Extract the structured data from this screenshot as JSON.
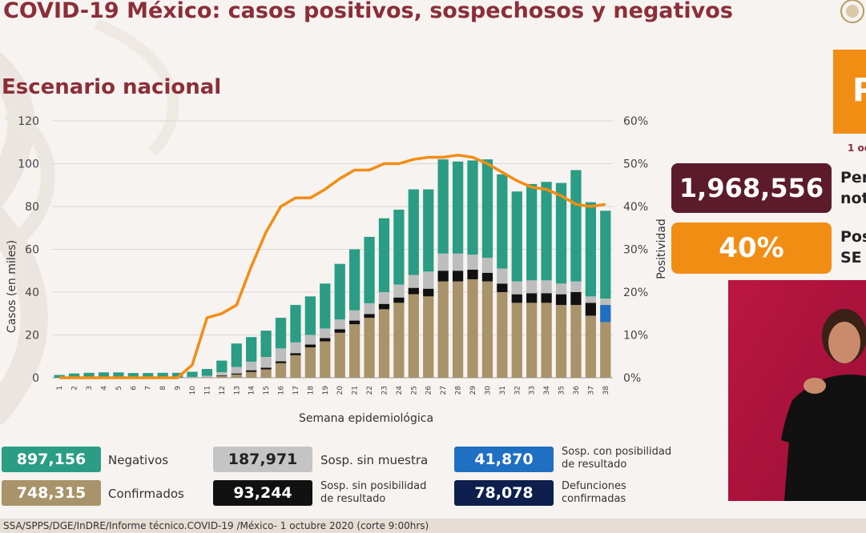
{
  "header": {
    "title": "COVID-19 México: casos positivos, sospechosos y negativos",
    "subtitle": "Escenario nacional"
  },
  "colors": {
    "title": "#8b2e38",
    "negativos": "#2a9d84",
    "confirmados": "#a8936a",
    "sosp_sin_muestra": "#bdbdbd",
    "sosp_sin_posibilidad": "#111111",
    "sosp_con_posibilidad": "#1f6fc2",
    "defunciones": "#0e1f4d",
    "positividad": "#f28d14"
  },
  "kpis": {
    "top_fragment": "P",
    "date_fragment": "1 oc",
    "total_value": "1,968,556",
    "total_label_line1": "Per",
    "total_label_line2": "not",
    "positivity_value": "40%",
    "positivity_label_line1": "Pos",
    "positivity_label_line2": "SE"
  },
  "legend": {
    "negativos": {
      "value": "897,156",
      "label": "Negativos"
    },
    "confirmados": {
      "value": "748,315",
      "label": "Confirmados"
    },
    "sosp_sin_muestra": {
      "value": "187,971",
      "label": "Sosp. sin muestra"
    },
    "sosp_sin_posibilidad": {
      "value": "93,244",
      "label_line1": "Sosp. sin posibilidad",
      "label_line2": "de resultado"
    },
    "sosp_con_posibilidad": {
      "value": "41,870",
      "label_line1": "Sosp. con posibilidad",
      "label_line2": "de resultado"
    },
    "defunciones": {
      "value": "78,078",
      "label_line1": "Defunciones",
      "label_line2": "confirmadas"
    }
  },
  "source": "SSA/SPPS/DGE/InDRE/Informe técnico.COVID-19 /México- 1 octubre 2020 (corte 9:00hrs)",
  "chart_data": {
    "type": "bar",
    "stacked": true,
    "xlabel": "Semana epidemiológica",
    "ylabel": "Casos (en miles)",
    "y2label": "Positividad",
    "ylim": [
      0,
      120
    ],
    "yticks": [
      0,
      20,
      40,
      60,
      80,
      100,
      120
    ],
    "y2lim": [
      0,
      60
    ],
    "y2ticks": [
      "0%",
      "10%",
      "20%",
      "30%",
      "40%",
      "50%",
      "60%"
    ],
    "grid": true,
    "categories": [
      "1",
      "2",
      "3",
      "4",
      "5",
      "6",
      "7",
      "8",
      "9",
      "10",
      "11",
      "12",
      "13",
      "14",
      "15",
      "16",
      "17",
      "18",
      "19",
      "20",
      "21",
      "22",
      "23",
      "24",
      "25",
      "26",
      "27",
      "28",
      "29",
      "30",
      "31",
      "32",
      "33",
      "34",
      "35",
      "36",
      "37",
      "38"
    ],
    "series": [
      {
        "name": "Confirmados",
        "values": [
          0,
          0,
          0,
          0,
          0,
          0,
          0,
          0,
          0,
          0.1,
          0.3,
          0.8,
          1.5,
          2.7,
          3.9,
          6.8,
          10.5,
          14.2,
          17,
          21,
          25,
          28,
          32,
          35,
          39,
          38,
          45,
          45,
          46,
          45,
          40,
          35,
          35,
          35,
          34,
          34,
          29,
          26
        ]
      },
      {
        "name": "Sosp. sin posibilidad de resultado",
        "values": [
          0,
          0,
          0,
          0,
          0,
          0,
          0,
          0,
          0,
          0,
          0,
          0.3,
          0.5,
          0.8,
          0.8,
          0.9,
          1,
          1.3,
          1.5,
          1.7,
          1.7,
          1.8,
          2.5,
          2.5,
          3,
          3.6,
          5,
          5,
          4.5,
          4,
          4,
          4,
          4.5,
          4.5,
          5,
          6,
          6,
          0
        ]
      },
      {
        "name": "Sosp. con posibilidad de resultado",
        "values": [
          0,
          0,
          0,
          0,
          0,
          0,
          0,
          0,
          0,
          0,
          0,
          0,
          0,
          0,
          0,
          0,
          0,
          0,
          0,
          0,
          0,
          0,
          0,
          0,
          0,
          0,
          0,
          0,
          0,
          0,
          0,
          0,
          0,
          0,
          0,
          0,
          0,
          8
        ]
      },
      {
        "name": "Sosp. sin muestra",
        "values": [
          0,
          0,
          0,
          0,
          0,
          0,
          0,
          0,
          0,
          0.3,
          0.6,
          1.5,
          3,
          4,
          5,
          6,
          5,
          4.5,
          4.5,
          4.5,
          4.8,
          5,
          5.5,
          6,
          6,
          8,
          8,
          8,
          7,
          7,
          7,
          6,
          6,
          6,
          5,
          5,
          3,
          3
        ]
      },
      {
        "name": "Negativos",
        "values": [
          1.3,
          2,
          2.3,
          2.5,
          2.5,
          2.2,
          2.2,
          2.3,
          2.3,
          2.4,
          3.2,
          5.4,
          11,
          11.5,
          12.3,
          14.3,
          17.5,
          18,
          21,
          26,
          28.5,
          31,
          34.5,
          35,
          40,
          38.4,
          44,
          43,
          44,
          46,
          44,
          42,
          45,
          46,
          47,
          52,
          44,
          41
        ]
      }
    ],
    "line": {
      "name": "Positividad",
      "values": [
        0,
        0,
        0,
        0,
        0,
        0,
        0,
        0,
        0,
        3,
        14,
        15,
        17,
        26,
        34,
        40,
        42,
        42,
        44,
        46.5,
        48.5,
        48.5,
        50,
        50,
        51,
        51.5,
        51.5,
        52,
        51.5,
        50,
        48,
        46,
        44.5,
        44,
        42.5,
        40.5,
        40,
        40.5
      ]
    }
  }
}
